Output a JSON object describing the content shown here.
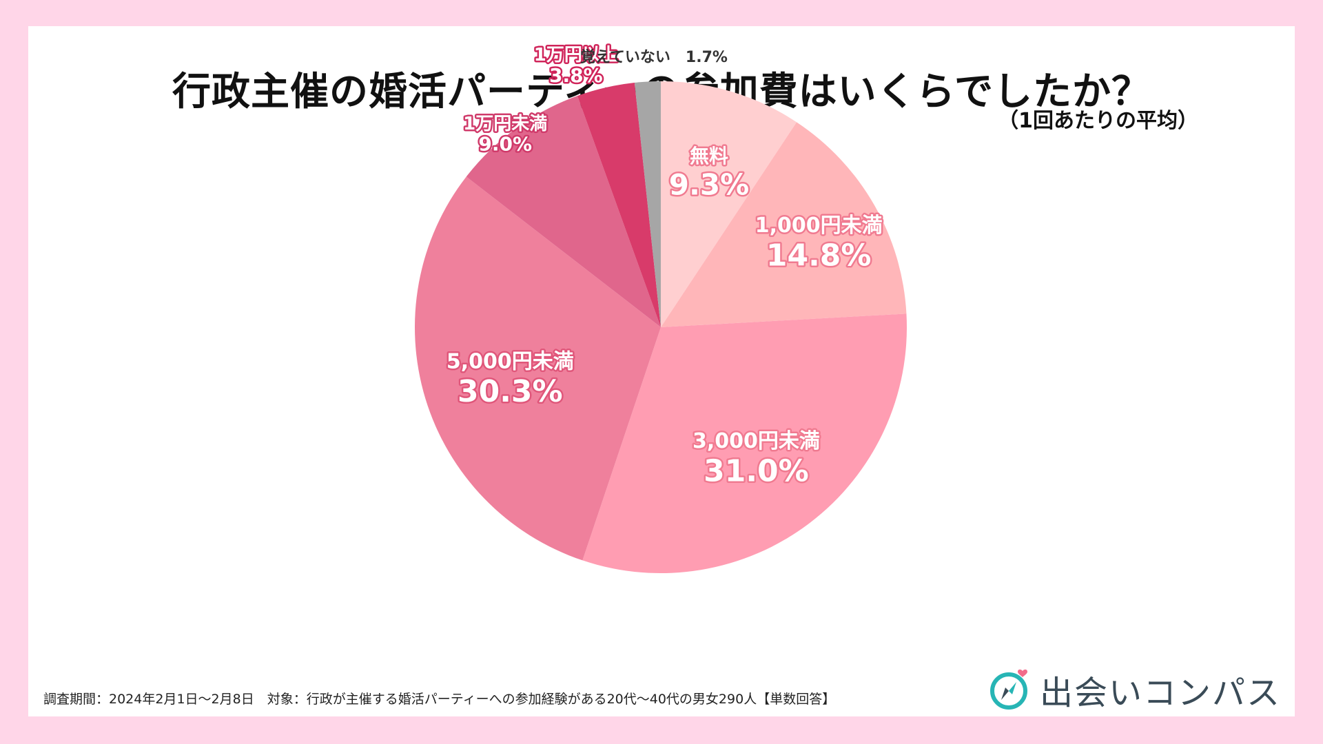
{
  "title": "行政主催の婚活パーティーの参加費はいくらでしたか？",
  "subtitle": "（1回あたりの平均）",
  "note": "調査期間：2024年2月1日～2月8日　対象：行政が主催する婚活パーティーへの参加経験がある20代～40代の男女290人【単数回答】",
  "brand": {
    "name": "出会いコンパス",
    "icon": "compass-heart-icon",
    "color": "#3a4b57",
    "accent": "#27b5b5",
    "heart": "#f26b8a"
  },
  "chart_data": {
    "type": "pie",
    "title": "行政主催の婚活パーティーの参加費はいくらでしたか？",
    "start": "12 o'clock",
    "direction": "clockwise",
    "slices": [
      {
        "label": "無料",
        "value": 9.3,
        "value_label": "9.3%",
        "color": "#ffcfd0",
        "label_color": "#f07a90"
      },
      {
        "label": "1,000円未満",
        "value": 14.8,
        "value_label": "14.8%",
        "color": "#ffb6b9",
        "label_color": "#f07a90"
      },
      {
        "label": "3,000円未満",
        "value": 31.0,
        "value_label": "31.0%",
        "color": "#ff9db2",
        "label_color": "#f07a90"
      },
      {
        "label": "5,000円未満",
        "value": 30.3,
        "value_label": "30.3%",
        "color": "#ef809c",
        "label_color": "#e0567a"
      },
      {
        "label": "1万円未満",
        "value": 9.0,
        "value_label": "9.0%",
        "color": "#e0668c",
        "label_color": "#d03a6a"
      },
      {
        "label": "1万円以上",
        "value": 3.8,
        "value_label": "3.8%",
        "color": "#d83b6a",
        "label_color": "#d0245a"
      },
      {
        "label": "覚えていない",
        "value": 1.7,
        "value_label": "1.7%",
        "color": "#a6a6a6",
        "label_color": "#333333"
      }
    ]
  }
}
